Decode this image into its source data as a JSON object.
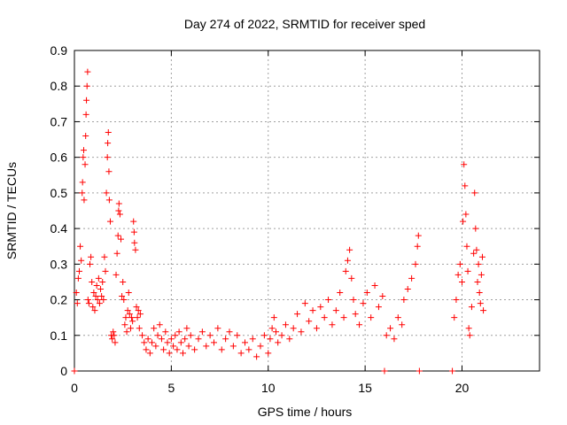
{
  "chart_data": {
    "type": "scatter",
    "title": "Day 274 of 2022, SRMTID for receiver sped",
    "xlabel": "GPS time / hours",
    "ylabel": "SRMTID / TECUs",
    "xlim": [
      0,
      24
    ],
    "ylim": [
      0,
      0.9
    ],
    "x_ticks": [
      0,
      5,
      10,
      15,
      20
    ],
    "x_tick_labels": [
      "0",
      "5",
      "10",
      "15",
      "20"
    ],
    "y_ticks": [
      0,
      0.1,
      0.2,
      0.3,
      0.4,
      0.5,
      0.6,
      0.7,
      0.8,
      0.9
    ],
    "y_tick_labels": [
      "0",
      "0.1",
      "0.2",
      "0.3",
      "0.4",
      "0.5",
      "0.6",
      "0.7",
      "0.8",
      "0.9"
    ],
    "grid": true,
    "marker": "+",
    "color": "#ff0000",
    "series": [
      {
        "name": "SRMTID",
        "points": [
          [
            0.0,
            0.0
          ],
          [
            0.1,
            0.22
          ],
          [
            0.15,
            0.19
          ],
          [
            0.2,
            0.26
          ],
          [
            0.25,
            0.28
          ],
          [
            0.3,
            0.35
          ],
          [
            0.35,
            0.31
          ],
          [
            0.4,
            0.5
          ],
          [
            0.42,
            0.53
          ],
          [
            0.45,
            0.6
          ],
          [
            0.48,
            0.62
          ],
          [
            0.5,
            0.48
          ],
          [
            0.55,
            0.58
          ],
          [
            0.58,
            0.66
          ],
          [
            0.6,
            0.72
          ],
          [
            0.62,
            0.76
          ],
          [
            0.65,
            0.8
          ],
          [
            0.68,
            0.84
          ],
          [
            0.7,
            0.2
          ],
          [
            0.75,
            0.19
          ],
          [
            0.8,
            0.3
          ],
          [
            0.85,
            0.32
          ],
          [
            0.9,
            0.25
          ],
          [
            0.95,
            0.18
          ],
          [
            1.0,
            0.22
          ],
          [
            1.05,
            0.17
          ],
          [
            1.1,
            0.21
          ],
          [
            1.15,
            0.24
          ],
          [
            1.2,
            0.2
          ],
          [
            1.25,
            0.26
          ],
          [
            1.3,
            0.19
          ],
          [
            1.35,
            0.23
          ],
          [
            1.4,
            0.21
          ],
          [
            1.45,
            0.25
          ],
          [
            1.5,
            0.2
          ],
          [
            1.55,
            0.32
          ],
          [
            1.6,
            0.28
          ],
          [
            1.65,
            0.5
          ],
          [
            1.7,
            0.6
          ],
          [
            1.72,
            0.64
          ],
          [
            1.75,
            0.67
          ],
          [
            1.78,
            0.56
          ],
          [
            1.8,
            0.48
          ],
          [
            1.85,
            0.42
          ],
          [
            1.9,
            0.1
          ],
          [
            1.95,
            0.09
          ],
          [
            2.0,
            0.11
          ],
          [
            2.05,
            0.1
          ],
          [
            2.1,
            0.08
          ],
          [
            2.15,
            0.27
          ],
          [
            2.2,
            0.33
          ],
          [
            2.25,
            0.38
          ],
          [
            2.28,
            0.45
          ],
          [
            2.3,
            0.47
          ],
          [
            2.35,
            0.44
          ],
          [
            2.4,
            0.37
          ],
          [
            2.45,
            0.21
          ],
          [
            2.5,
            0.25
          ],
          [
            2.55,
            0.2
          ],
          [
            2.6,
            0.13
          ],
          [
            2.65,
            0.15
          ],
          [
            2.7,
            0.11
          ],
          [
            2.75,
            0.17
          ],
          [
            2.8,
            0.22
          ],
          [
            2.85,
            0.16
          ],
          [
            2.9,
            0.12
          ],
          [
            2.95,
            0.15
          ],
          [
            3.0,
            0.14
          ],
          [
            3.05,
            0.42
          ],
          [
            3.08,
            0.39
          ],
          [
            3.1,
            0.36
          ],
          [
            3.15,
            0.34
          ],
          [
            3.2,
            0.18
          ],
          [
            3.25,
            0.15
          ],
          [
            3.3,
            0.17
          ],
          [
            3.35,
            0.12
          ],
          [
            3.4,
            0.16
          ],
          [
            3.5,
            0.1
          ],
          [
            3.6,
            0.08
          ],
          [
            3.7,
            0.06
          ],
          [
            3.8,
            0.09
          ],
          [
            3.9,
            0.05
          ],
          [
            4.0,
            0.08
          ],
          [
            4.1,
            0.12
          ],
          [
            4.2,
            0.07
          ],
          [
            4.3,
            0.1
          ],
          [
            4.4,
            0.13
          ],
          [
            4.5,
            0.09
          ],
          [
            4.6,
            0.06
          ],
          [
            4.7,
            0.11
          ],
          [
            4.8,
            0.08
          ],
          [
            4.9,
            0.05
          ],
          [
            5.0,
            0.09
          ],
          [
            5.1,
            0.07
          ],
          [
            5.2,
            0.1
          ],
          [
            5.3,
            0.06
          ],
          [
            5.4,
            0.11
          ],
          [
            5.5,
            0.08
          ],
          [
            5.6,
            0.05
          ],
          [
            5.7,
            0.09
          ],
          [
            5.8,
            0.12
          ],
          [
            5.9,
            0.07
          ],
          [
            6.0,
            0.1
          ],
          [
            6.2,
            0.06
          ],
          [
            6.4,
            0.09
          ],
          [
            6.6,
            0.11
          ],
          [
            6.8,
            0.07
          ],
          [
            7.0,
            0.1
          ],
          [
            7.2,
            0.08
          ],
          [
            7.4,
            0.12
          ],
          [
            7.6,
            0.06
          ],
          [
            7.8,
            0.09
          ],
          [
            8.0,
            0.11
          ],
          [
            8.2,
            0.07
          ],
          [
            8.4,
            0.1
          ],
          [
            8.6,
            0.05
          ],
          [
            8.8,
            0.08
          ],
          [
            9.0,
            0.06
          ],
          [
            9.2,
            0.09
          ],
          [
            9.4,
            0.04
          ],
          [
            9.6,
            0.07
          ],
          [
            9.8,
            0.1
          ],
          [
            10.0,
            0.05
          ],
          [
            10.1,
            0.09
          ],
          [
            10.2,
            0.12
          ],
          [
            10.3,
            0.15
          ],
          [
            10.4,
            0.11
          ],
          [
            10.5,
            0.08
          ],
          [
            10.7,
            0.1
          ],
          [
            10.9,
            0.13
          ],
          [
            11.1,
            0.09
          ],
          [
            11.3,
            0.12
          ],
          [
            11.5,
            0.16
          ],
          [
            11.7,
            0.11
          ],
          [
            11.9,
            0.19
          ],
          [
            12.1,
            0.14
          ],
          [
            12.3,
            0.17
          ],
          [
            12.5,
            0.12
          ],
          [
            12.7,
            0.18
          ],
          [
            12.9,
            0.15
          ],
          [
            13.1,
            0.2
          ],
          [
            13.3,
            0.13
          ],
          [
            13.5,
            0.17
          ],
          [
            13.7,
            0.22
          ],
          [
            13.9,
            0.15
          ],
          [
            14.0,
            0.28
          ],
          [
            14.1,
            0.31
          ],
          [
            14.2,
            0.34
          ],
          [
            14.3,
            0.26
          ],
          [
            14.4,
            0.2
          ],
          [
            14.5,
            0.16
          ],
          [
            14.7,
            0.13
          ],
          [
            14.9,
            0.19
          ],
          [
            15.1,
            0.22
          ],
          [
            15.3,
            0.15
          ],
          [
            15.5,
            0.24
          ],
          [
            15.7,
            0.18
          ],
          [
            15.9,
            0.21
          ],
          [
            16.0,
            0.0
          ],
          [
            16.1,
            0.1
          ],
          [
            16.3,
            0.12
          ],
          [
            16.5,
            0.09
          ],
          [
            16.7,
            0.15
          ],
          [
            16.9,
            0.13
          ],
          [
            17.0,
            0.2
          ],
          [
            17.2,
            0.23
          ],
          [
            17.4,
            0.26
          ],
          [
            17.6,
            0.3
          ],
          [
            17.7,
            0.35
          ],
          [
            17.75,
            0.38
          ],
          [
            17.8,
            0.0
          ],
          [
            19.5,
            0.0
          ],
          [
            19.6,
            0.15
          ],
          [
            19.7,
            0.2
          ],
          [
            19.8,
            0.27
          ],
          [
            19.9,
            0.3
          ],
          [
            20.0,
            0.25
          ],
          [
            20.05,
            0.42
          ],
          [
            20.1,
            0.58
          ],
          [
            20.15,
            0.52
          ],
          [
            20.2,
            0.44
          ],
          [
            20.25,
            0.35
          ],
          [
            20.3,
            0.28
          ],
          [
            20.35,
            0.12
          ],
          [
            20.4,
            0.1
          ],
          [
            20.5,
            0.18
          ],
          [
            20.6,
            0.33
          ],
          [
            20.65,
            0.5
          ],
          [
            20.7,
            0.4
          ],
          [
            20.75,
            0.34
          ],
          [
            20.8,
            0.25
          ],
          [
            20.85,
            0.3
          ],
          [
            20.9,
            0.22
          ],
          [
            20.95,
            0.19
          ],
          [
            21.0,
            0.27
          ],
          [
            21.05,
            0.32
          ],
          [
            21.1,
            0.17
          ]
        ]
      }
    ]
  }
}
